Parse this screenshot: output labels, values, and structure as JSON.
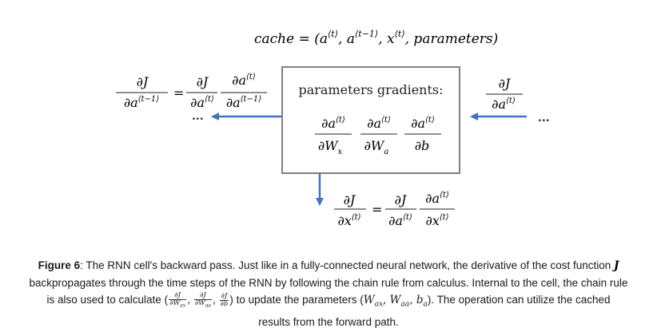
{
  "diagram": {
    "cache_label": "cache = (a⟨t⟩, a⟨t−1⟩, x⟨t⟩, parameters)",
    "box_title": "parameters gradients:",
    "dots_left": "...",
    "dots_right": "...",
    "arrow_color": "#4472c4",
    "box_border_color": "#7f7f7f"
  },
  "caption": {
    "figure_label": "Figure 6",
    "line1": ": The RNN cell's backward pass. Just like in a fully-connected neural network, the derivative of the cost function",
    "cost_symbol": "J",
    "line2": "backpropagates through the time steps of the RNN by following the chain rule from calculus. Internal to the cell, the chain rule",
    "line3_pre": "is also used to calculate (",
    "line3_mid": ") to update the parameters (",
    "line3_params": "Wax, Waa, ba",
    "line3_post": "). The operation can utilize the cached",
    "line4": "results from the forward path."
  }
}
